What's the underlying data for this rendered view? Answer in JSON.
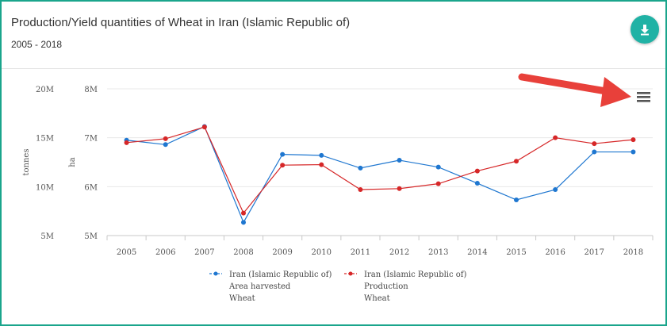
{
  "header": {
    "title": "Production/Yield quantities of Wheat in Iran (Islamic Republic of)",
    "subtitle": "2005 - 2018",
    "download_icon": "download-icon",
    "accent_color": "#20b2a5"
  },
  "menu_icon": "hamburger-menu-icon",
  "annotation": {
    "arrow_color": "#e8403a"
  },
  "chart_data": {
    "type": "line",
    "categories": [
      "2005",
      "2006",
      "2007",
      "2008",
      "2009",
      "2010",
      "2011",
      "2012",
      "2013",
      "2014",
      "2015",
      "2016",
      "2017",
      "2018"
    ],
    "left_axis": {
      "label": "tonnes",
      "ticks": [
        "20M",
        "15M",
        "10M",
        "5M"
      ],
      "range": [
        5000000,
        20000000
      ]
    },
    "right_axis": {
      "label": "ha",
      "ticks": [
        "8M",
        "7M",
        "6M",
        "5M"
      ],
      "range": [
        5000000,
        8000000
      ]
    },
    "series": [
      {
        "name": "Iran (Islamic Republic of)",
        "legend_lines": [
          "Iran (Islamic Republic of)",
          "Area harvested",
          "Wheat"
        ],
        "axis": "right",
        "color": "#1f77d0",
        "values": [
          6950000,
          6860000,
          7230000,
          5270000,
          6660000,
          6640000,
          6380000,
          6540000,
          6400000,
          6070000,
          5730000,
          5940000,
          6710000,
          6710000
        ]
      },
      {
        "name": "Iran (Islamic Republic of)",
        "legend_lines": [
          "Iran (Islamic Republic of)",
          "Production",
          "Wheat"
        ],
        "axis": "left",
        "color": "#d62728",
        "values": [
          14500000,
          14900000,
          16100000,
          7300000,
          12200000,
          12250000,
          9700000,
          9800000,
          10300000,
          11600000,
          12600000,
          15000000,
          14400000,
          14800000
        ]
      }
    ],
    "grid": true,
    "legend_position": "bottom"
  }
}
